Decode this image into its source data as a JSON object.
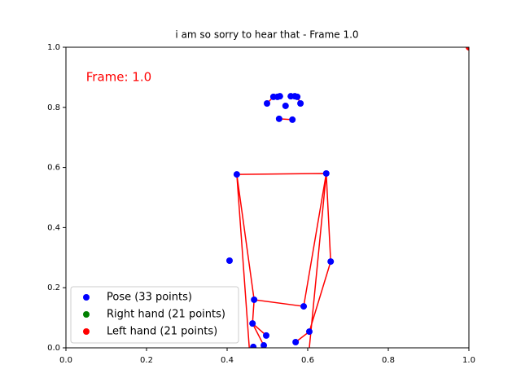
{
  "chart_data": {
    "type": "scatter",
    "title": "i am so sorry to hear that - Frame 1.0",
    "annotation": {
      "text": "Frame: 1.0",
      "color": "#ff0000"
    },
    "xlim": [
      0,
      1
    ],
    "ylim": [
      0,
      1
    ],
    "xticks": [
      {
        "value": 0,
        "label": "0.0"
      },
      {
        "value": 0.2,
        "label": "0.2"
      },
      {
        "value": 0.4,
        "label": "0.4"
      },
      {
        "value": 0.6,
        "label": "0.6"
      },
      {
        "value": 0.8,
        "label": "0.8"
      },
      {
        "value": 1,
        "label": "1.0"
      }
    ],
    "yticks": [
      {
        "value": 0,
        "label": "0.0"
      },
      {
        "value": 0.2,
        "label": "0.2"
      },
      {
        "value": 0.4,
        "label": "0.4"
      },
      {
        "value": 0.6,
        "label": "0.6"
      },
      {
        "value": 0.8,
        "label": "0.8"
      },
      {
        "value": 1,
        "label": "1.0"
      }
    ],
    "legend": "lower left",
    "series": [
      {
        "name": "Pose (33 points)",
        "color": "#0000ff",
        "x": [
          0.499,
          0.515,
          0.525,
          0.531,
          0.545,
          0.529,
          0.562,
          0.558,
          0.568,
          0.574,
          0.582,
          0.424,
          0.646,
          0.406,
          0.657,
          0.467,
          0.59,
          0.463,
          0.497,
          0.604,
          0.57,
          0.465,
          0.491
        ],
        "values": [
          0.813,
          0.835,
          0.835,
          0.837,
          0.805,
          0.762,
          0.759,
          0.837,
          0.837,
          0.835,
          0.813,
          0.577,
          0.58,
          0.29,
          0.287,
          0.16,
          0.138,
          0.081,
          0.041,
          0.054,
          0.019,
          0.003,
          0.008
        ]
      },
      {
        "name": "Right hand (21 points)",
        "color": "#008000",
        "x": [],
        "values": []
      },
      {
        "name": "Left hand (21 points)",
        "color": "#ff0000",
        "x": [
          1.0
        ],
        "values": [
          1.0
        ]
      }
    ],
    "connections": {
      "color": "#ff0000",
      "x": [
        0.499,
        0.515,
        0.525,
        0.531,
        null,
        0.558,
        0.568,
        0.574,
        0.582,
        null,
        0.529,
        0.562,
        null,
        0.424,
        0.646,
        null,
        0.424,
        0.467,
        0.59,
        0.646,
        0.657,
        0.604,
        0.57,
        null,
        0.424,
        0.455,
        null,
        0.646,
        0.604,
        null,
        0.467,
        0.463,
        0.497,
        null,
        0.463,
        0.491
      ],
      "values": [
        0.813,
        0.835,
        0.835,
        0.837,
        null,
        0.837,
        0.837,
        0.835,
        0.813,
        null,
        0.762,
        0.759,
        null,
        0.577,
        0.58,
        null,
        0.577,
        0.16,
        0.138,
        0.58,
        0.287,
        0.054,
        0.019,
        null,
        0.577,
        0.0,
        null,
        0.58,
        0.0,
        null,
        0.16,
        0.081,
        0.041,
        null,
        0.081,
        0.008
      ]
    }
  }
}
